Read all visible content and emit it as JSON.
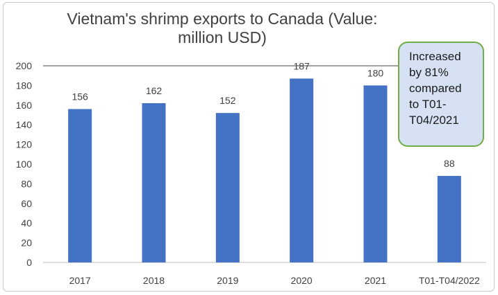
{
  "chart_data": {
    "type": "bar",
    "title": "Vietnam's shrimp exports to Canada (Value: million USD)",
    "categories": [
      "2017",
      "2018",
      "2019",
      "2020",
      "2021",
      "T01-T04/2022"
    ],
    "values": [
      156,
      162,
      152,
      187,
      180,
      88
    ],
    "data_labels": [
      "156",
      "162",
      "152",
      "187",
      "180",
      "88"
    ],
    "y_ticks": [
      "0",
      "20",
      "40",
      "60",
      "80",
      "100",
      "120",
      "140",
      "160",
      "180",
      "200"
    ],
    "ylim": [
      0,
      200
    ],
    "xlabel": "",
    "ylabel": "",
    "grid": false,
    "colors": {
      "bar": "#4472c4",
      "axis": "#bfbfbf",
      "callout_fill": "#d6e2f3",
      "callout_border": "#70ad47"
    },
    "annotation": "Increased\nby 81%\ncompared\nto T01-\nT04/2021"
  }
}
